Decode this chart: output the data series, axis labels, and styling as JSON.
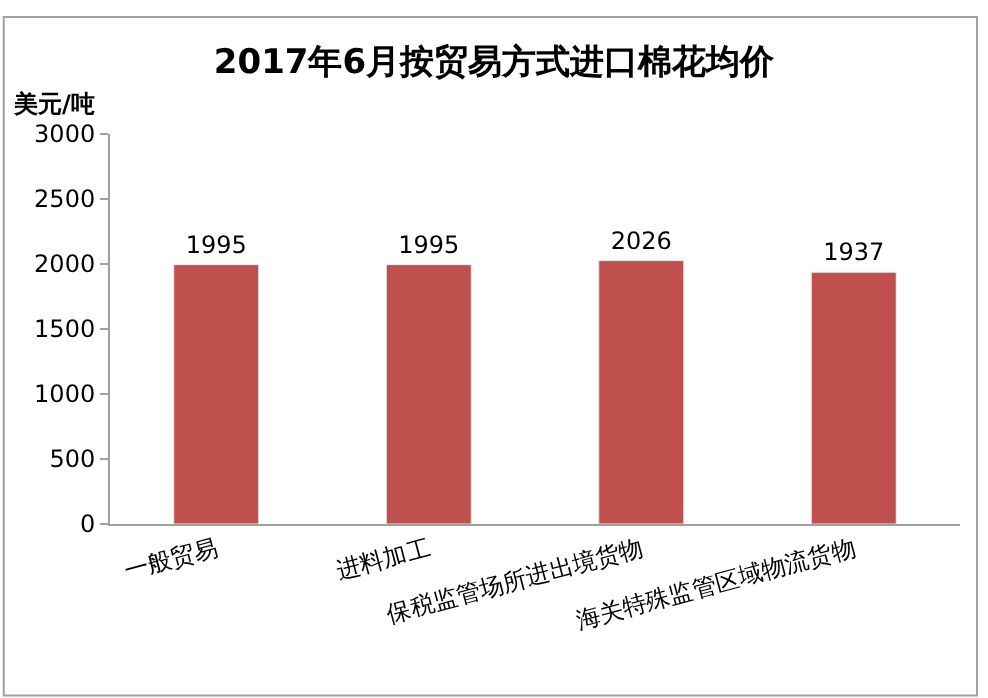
{
  "chart_data": {
    "type": "bar",
    "title": "2017年6月按贸易方式进口棉花均价",
    "ylabel": "美元/吨",
    "categories": [
      "一般贸易",
      "进料加工",
      "保税监管场所进出境货物",
      "海关特殊监管区域物流货物"
    ],
    "values": [
      1995,
      1995,
      2026,
      1937
    ],
    "color": "#c0504d",
    "ylim": [
      0,
      3000
    ],
    "yticks": [
      0,
      500,
      1000,
      1500,
      2000,
      2500,
      3000
    ],
    "data_labels": true,
    "legend": false
  }
}
